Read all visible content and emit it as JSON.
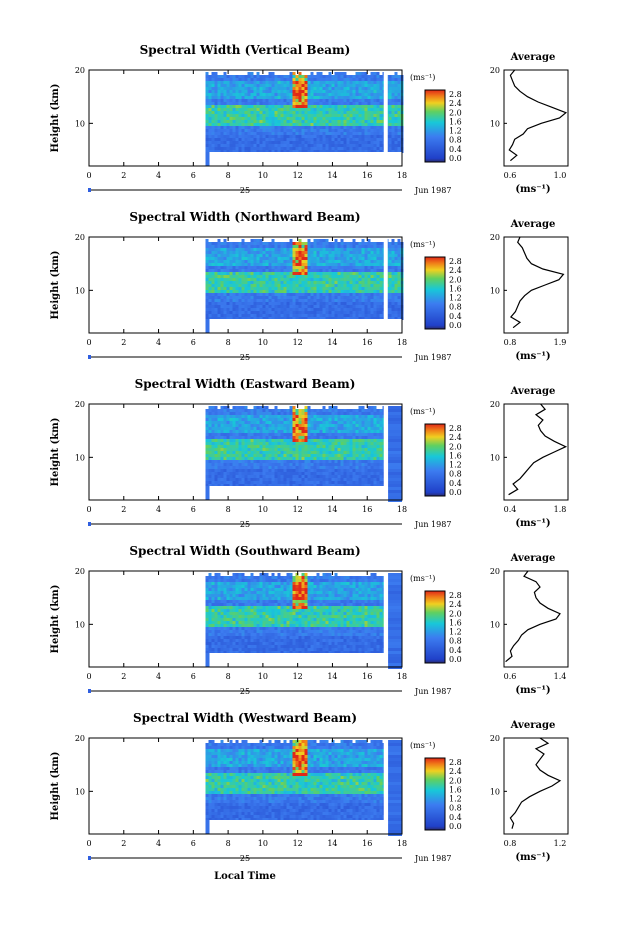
{
  "figure": {
    "x_axis_label": "Local Time",
    "date_label": "Jun 1987",
    "day_label": "25",
    "y_axis_label": "Height (km)",
    "avg_title": "Average",
    "avg_unit": "(ms⁻¹)",
    "colorbar_unit": "(ms⁻¹)",
    "colors": {
      "low": "#2a2a6e",
      "blue": "#2f5fe0",
      "cyan": "#18c8d8",
      "yellow": "#f0d020",
      "red": "#e02818"
    }
  },
  "chart_data": [
    {
      "type": "heatmap",
      "title": "Spectral Width (Vertical Beam)",
      "xlabel": "Local Time",
      "ylabel": "Height (km)",
      "xlim": [
        0,
        18
      ],
      "ylim": [
        2,
        20
      ],
      "x_ticks": [
        "0",
        "2",
        "4",
        "6",
        "8",
        "10",
        "12",
        "14",
        "16",
        "18"
      ],
      "y_ticks": [
        "20",
        "10"
      ],
      "colorbar": {
        "unit": "(ms⁻¹)",
        "ticks": [
          "2.8",
          "2.4",
          "2.0",
          "1.6",
          "1.2",
          "0.8",
          "0.4",
          "0.0"
        ],
        "range": [
          0,
          2.8
        ]
      },
      "data_start_hour": 6.7,
      "data_end_hour": 18,
      "intense_hour": 12,
      "average": {
        "xlim": [
          0.6,
          1.2
        ],
        "x_ticks": [
          "0.6",
          "1.0"
        ],
        "height": [
          3,
          4,
          5,
          6,
          7,
          8,
          9,
          10,
          11,
          12,
          13,
          14,
          15,
          16,
          17,
          18,
          19,
          20
        ],
        "width": [
          0.66,
          0.72,
          0.65,
          0.68,
          0.7,
          0.78,
          0.82,
          0.95,
          1.12,
          1.18,
          1.05,
          0.92,
          0.82,
          0.75,
          0.7,
          0.68,
          0.66,
          0.7
        ]
      }
    },
    {
      "type": "heatmap",
      "title": "Spectral Width (Northward Beam)",
      "xlabel": "Local Time",
      "ylabel": "Height (km)",
      "xlim": [
        0,
        18
      ],
      "ylim": [
        2,
        20
      ],
      "x_ticks": [
        "0",
        "2",
        "4",
        "6",
        "8",
        "10",
        "12",
        "14",
        "16",
        "18"
      ],
      "y_ticks": [
        "20",
        "10"
      ],
      "colorbar": {
        "unit": "(ms⁻¹)",
        "ticks": [
          "2.8",
          "2.4",
          "2.0",
          "1.6",
          "1.2",
          "0.8",
          "0.4",
          "0.0"
        ],
        "range": [
          0,
          2.8
        ]
      },
      "data_start_hour": 6.7,
      "data_end_hour": 18,
      "intense_hour": 12,
      "average": {
        "xlim": [
          0.6,
          2.0
        ],
        "x_ticks": [
          "0.8",
          "1.9"
        ],
        "height": [
          3,
          4,
          5,
          6,
          7,
          8,
          9,
          10,
          11,
          12,
          13,
          14,
          15,
          16,
          17,
          18,
          19,
          20
        ],
        "width": [
          0.8,
          0.95,
          0.75,
          0.85,
          0.9,
          0.95,
          1.05,
          1.2,
          1.5,
          1.8,
          1.9,
          1.45,
          1.2,
          1.1,
          1.05,
          1.0,
          0.9,
          0.95
        ]
      }
    },
    {
      "type": "heatmap",
      "title": "Spectral Width (Eastward Beam)",
      "xlabel": "Local Time",
      "ylabel": "Height (km)",
      "xlim": [
        0,
        18
      ],
      "ylim": [
        2,
        20
      ],
      "x_ticks": [
        "0",
        "2",
        "4",
        "6",
        "8",
        "10",
        "12",
        "14",
        "16",
        "18"
      ],
      "y_ticks": [
        "20",
        "10"
      ],
      "colorbar": {
        "unit": "(ms⁻¹)",
        "ticks": [
          "2.8",
          "2.4",
          "2.0",
          "1.6",
          "1.2",
          "0.8",
          "0.4",
          "0.0"
        ],
        "range": [
          0,
          2.8
        ]
      },
      "data_start_hour": 6.7,
      "data_end_hour": 17,
      "intense_hour": 12,
      "average": {
        "xlim": [
          0.4,
          1.8
        ],
        "x_ticks": [
          "0.4",
          "1.8"
        ],
        "height": [
          3,
          4,
          5,
          6,
          7,
          8,
          9,
          10,
          11,
          12,
          13,
          14,
          15,
          16,
          17,
          18,
          19,
          20
        ],
        "width": [
          0.5,
          0.7,
          0.6,
          0.75,
          0.85,
          0.95,
          1.05,
          1.25,
          1.5,
          1.75,
          1.5,
          1.3,
          1.2,
          1.15,
          1.25,
          1.1,
          1.3,
          1.2
        ]
      }
    },
    {
      "type": "heatmap",
      "title": "Spectral Width (Southward Beam)",
      "xlabel": "Local Time",
      "ylabel": "Height (km)",
      "xlim": [
        0,
        18
      ],
      "ylim": [
        2,
        20
      ],
      "x_ticks": [
        "0",
        "2",
        "4",
        "6",
        "8",
        "10",
        "12",
        "14",
        "16",
        "18"
      ],
      "y_ticks": [
        "20",
        "10"
      ],
      "colorbar": {
        "unit": "(ms⁻¹)",
        "ticks": [
          "2.8",
          "2.4",
          "2.0",
          "1.6",
          "1.2",
          "0.8",
          "0.4",
          "0.0"
        ],
        "range": [
          0,
          2.8
        ]
      },
      "data_start_hour": 6.7,
      "data_end_hour": 17,
      "intense_hour": 12,
      "average": {
        "xlim": [
          0.6,
          1.4
        ],
        "x_ticks": [
          "0.6",
          "1.4"
        ],
        "height": [
          3,
          4,
          5,
          6,
          7,
          8,
          9,
          10,
          11,
          12,
          13,
          14,
          15,
          16,
          17,
          18,
          19,
          20
        ],
        "width": [
          0.62,
          0.7,
          0.68,
          0.72,
          0.78,
          0.82,
          0.9,
          1.05,
          1.25,
          1.3,
          1.15,
          1.05,
          1.0,
          0.98,
          1.05,
          1.0,
          0.85,
          0.9
        ]
      }
    },
    {
      "type": "heatmap",
      "title": "Spectral Width (Westward Beam)",
      "xlabel": "Local Time",
      "ylabel": "Height (km)",
      "xlim": [
        0,
        18
      ],
      "ylim": [
        2,
        20
      ],
      "x_ticks": [
        "0",
        "2",
        "4",
        "6",
        "8",
        "10",
        "12",
        "14",
        "16",
        "18"
      ],
      "y_ticks": [
        "20",
        "10"
      ],
      "colorbar": {
        "unit": "(ms⁻¹)",
        "ticks": [
          "2.8",
          "2.4",
          "2.0",
          "1.6",
          "1.2",
          "0.8",
          "0.4",
          "0.0"
        ],
        "range": [
          0,
          2.8
        ]
      },
      "data_start_hour": 6.7,
      "data_end_hour": 17,
      "intense_hour": 12,
      "average": {
        "xlim": [
          0.6,
          1.4
        ],
        "x_ticks": [
          "0.8",
          "1.2"
        ],
        "height": [
          3,
          4,
          5,
          6,
          7,
          8,
          9,
          10,
          11,
          12,
          13,
          14,
          15,
          16,
          17,
          18,
          19,
          20
        ],
        "width": [
          0.7,
          0.72,
          0.68,
          0.74,
          0.78,
          0.82,
          0.92,
          1.05,
          1.2,
          1.3,
          1.15,
          1.05,
          1.0,
          1.05,
          1.1,
          1.0,
          1.15,
          1.05
        ]
      }
    }
  ]
}
